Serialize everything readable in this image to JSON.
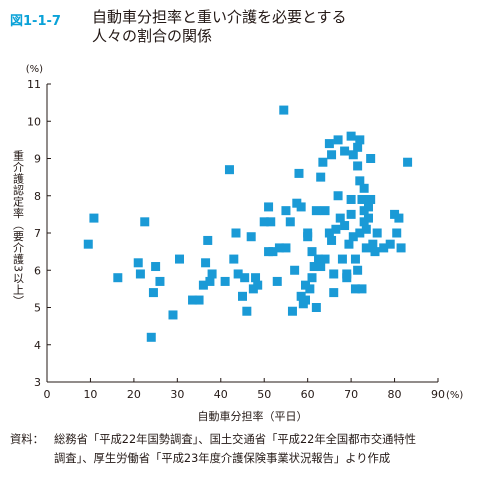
{
  "figure": {
    "number": "図1-1-7",
    "title_line1": "自動車分担率と重い介護を必要とする",
    "title_line2": "人々の割合の関係"
  },
  "source": {
    "label": "資料：",
    "text_line1": "総務省「平成22年国勢調査」、国土交通省「平成22年全国都市交通特性",
    "text_line2": "調査」、厚生労働省「平成23年度介護保険事業状況報告」より作成"
  },
  "colors": {
    "marker": "#1a9ad6",
    "axis": "#231815",
    "title_accent": "#0aa2d8"
  },
  "chart_data": {
    "type": "scatter",
    "xlabel": "自動車分担率（平日）",
    "ylabel": "重介護認定率（要介護3以上）",
    "x_unit": "(%)",
    "y_unit": "(%)",
    "xlim": [
      0,
      90
    ],
    "ylim": [
      3,
      11
    ],
    "x_ticks": [
      0,
      10,
      20,
      30,
      40,
      50,
      60,
      70,
      80,
      90
    ],
    "y_ticks": [
      3,
      4,
      5,
      6,
      7,
      8,
      9,
      10,
      11
    ],
    "grid": false,
    "points": [
      [
        9.5,
        6.7
      ],
      [
        10.8,
        7.4
      ],
      [
        16.3,
        5.8
      ],
      [
        21.0,
        6.2
      ],
      [
        21.5,
        5.9
      ],
      [
        22.5,
        7.3
      ],
      [
        24.0,
        4.2
      ],
      [
        24.5,
        5.4
      ],
      [
        25.0,
        6.1
      ],
      [
        26.0,
        5.7
      ],
      [
        29.0,
        4.8
      ],
      [
        30.5,
        6.3
      ],
      [
        33.5,
        5.2
      ],
      [
        35.0,
        5.2
      ],
      [
        36.0,
        5.6
      ],
      [
        36.5,
        6.2
      ],
      [
        37.0,
        6.8
      ],
      [
        37.5,
        5.7
      ],
      [
        38.0,
        5.9
      ],
      [
        41.0,
        5.7
      ],
      [
        42.0,
        8.7
      ],
      [
        43.0,
        6.3
      ],
      [
        43.5,
        7.0
      ],
      [
        44.0,
        5.9
      ],
      [
        45.0,
        5.3
      ],
      [
        45.5,
        5.8
      ],
      [
        46.0,
        4.9
      ],
      [
        47.0,
        6.9
      ],
      [
        47.5,
        5.5
      ],
      [
        48.0,
        5.8
      ],
      [
        48.5,
        5.6
      ],
      [
        50.0,
        7.3
      ],
      [
        51.0,
        6.5
      ],
      [
        51.0,
        7.7
      ],
      [
        51.5,
        7.3
      ],
      [
        52.0,
        6.5
      ],
      [
        53.0,
        5.7
      ],
      [
        53.5,
        6.6
      ],
      [
        54.5,
        10.3
      ],
      [
        55.0,
        7.6
      ],
      [
        55.0,
        6.6
      ],
      [
        56.0,
        7.3
      ],
      [
        56.5,
        4.9
      ],
      [
        57.0,
        6.0
      ],
      [
        57.5,
        7.8
      ],
      [
        58.0,
        8.6
      ],
      [
        58.5,
        7.7
      ],
      [
        58.5,
        5.3
      ],
      [
        59.0,
        5.1
      ],
      [
        59.5,
        5.6
      ],
      [
        59.5,
        5.2
      ],
      [
        60.0,
        7.0
      ],
      [
        60.0,
        6.9
      ],
      [
        60.5,
        5.5
      ],
      [
        61.0,
        6.5
      ],
      [
        61.0,
        5.8
      ],
      [
        61.5,
        6.1
      ],
      [
        62.0,
        7.6
      ],
      [
        62.0,
        5.0
      ],
      [
        62.5,
        6.3
      ],
      [
        63.0,
        8.5
      ],
      [
        63.0,
        6.1
      ],
      [
        63.5,
        8.9
      ],
      [
        64.0,
        7.6
      ],
      [
        64.0,
        6.3
      ],
      [
        65.0,
        7.0
      ],
      [
        65.0,
        9.4
      ],
      [
        65.5,
        9.1
      ],
      [
        65.5,
        6.8
      ],
      [
        66.0,
        5.9
      ],
      [
        66.0,
        5.4
      ],
      [
        66.5,
        7.1
      ],
      [
        67.0,
        8.0
      ],
      [
        67.0,
        9.5
      ],
      [
        67.5,
        7.4
      ],
      [
        68.0,
        6.3
      ],
      [
        68.5,
        9.2
      ],
      [
        68.5,
        7.2
      ],
      [
        69.0,
        5.8
      ],
      [
        69.0,
        5.9
      ],
      [
        69.5,
        6.7
      ],
      [
        70.0,
        7.9
      ],
      [
        70.0,
        7.5
      ],
      [
        70.0,
        9.6
      ],
      [
        70.5,
        9.1
      ],
      [
        70.5,
        6.9
      ],
      [
        71.0,
        6.3
      ],
      [
        71.0,
        5.5
      ],
      [
        71.5,
        9.3
      ],
      [
        71.5,
        8.8
      ],
      [
        71.5,
        6.0
      ],
      [
        72.0,
        9.5
      ],
      [
        72.0,
        8.4
      ],
      [
        72.0,
        7.0
      ],
      [
        72.5,
        7.9
      ],
      [
        72.5,
        5.5
      ],
      [
        73.0,
        8.2
      ],
      [
        73.0,
        7.6
      ],
      [
        73.0,
        7.3
      ],
      [
        73.5,
        7.1
      ],
      [
        73.5,
        6.6
      ],
      [
        74.0,
        7.4
      ],
      [
        74.0,
        7.7
      ],
      [
        74.5,
        9.0
      ],
      [
        75.0,
        6.7
      ],
      [
        75.5,
        6.5
      ],
      [
        76.0,
        7.0
      ],
      [
        77.5,
        6.6
      ],
      [
        79.0,
        6.7
      ],
      [
        80.0,
        7.5
      ],
      [
        81.0,
        7.4
      ],
      [
        81.5,
        6.6
      ],
      [
        83.0,
        8.9
      ],
      [
        80.5,
        7.0
      ],
      [
        74.5,
        7.9
      ]
    ]
  }
}
